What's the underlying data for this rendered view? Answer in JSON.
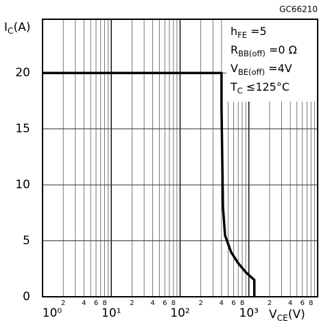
{
  "chart_data": {
    "type": "line",
    "code": "GC66210",
    "ylabel": {
      "main": "I",
      "sub": "C",
      "after": "(A)"
    },
    "xlabel": {
      "main": "V",
      "sub": "CE",
      "after": "(V)"
    },
    "annotations": [
      {
        "main": "h",
        "sub": "FE",
        "after": " =5"
      },
      {
        "main": "R",
        "sub": "BB(off)",
        "after": " =0 Ω"
      },
      {
        "main": "V",
        "sub": "BE(off)",
        "after": " =4V"
      },
      {
        "main": "T",
        "sub": "C",
        "after": " ≤125°C"
      }
    ],
    "x": [
      1,
      400,
      400,
      420,
      450,
      550,
      700,
      900,
      1200,
      1200
    ],
    "series": [
      {
        "color": "#000000",
        "values": [
          20,
          20,
          17,
          8,
          5.5,
          4,
          3,
          2.2,
          1.5,
          0
        ]
      }
    ],
    "log_x": true,
    "grid": true,
    "xlim": [
      1,
      10000
    ],
    "ylim": [
      0,
      24.8
    ],
    "xticks": [
      {
        "value": 1,
        "label": "10⁰"
      },
      {
        "value": 10,
        "label": "10¹"
      },
      {
        "value": 100,
        "label": "10²"
      },
      {
        "value": 1000,
        "label": "10³"
      }
    ],
    "minor_xticks": [
      {
        "value": 2,
        "label": "2"
      },
      {
        "value": 4,
        "label": "4"
      },
      {
        "value": 6,
        "label": "6"
      },
      {
        "value": 8,
        "label": "8"
      },
      {
        "value": 20,
        "label": "2"
      },
      {
        "value": 40,
        "label": "4"
      },
      {
        "value": 60,
        "label": "6"
      },
      {
        "value": 80,
        "label": "8"
      },
      {
        "value": 200,
        "label": "2"
      },
      {
        "value": 400,
        "label": "4"
      },
      {
        "value": 600,
        "label": "6"
      },
      {
        "value": 800,
        "label": "8"
      },
      {
        "value": 2000,
        "label": "2"
      },
      {
        "value": 4000,
        "label": "4"
      },
      {
        "value": 6000,
        "label": "6"
      },
      {
        "value": 8000,
        "label": "8"
      }
    ],
    "minor_xgrid": [
      3,
      5,
      7,
      9,
      30,
      50,
      70,
      90,
      300,
      500,
      700,
      900,
      3000,
      5000,
      7000,
      9000
    ],
    "yticks": [
      0,
      5,
      10,
      15,
      20
    ]
  }
}
